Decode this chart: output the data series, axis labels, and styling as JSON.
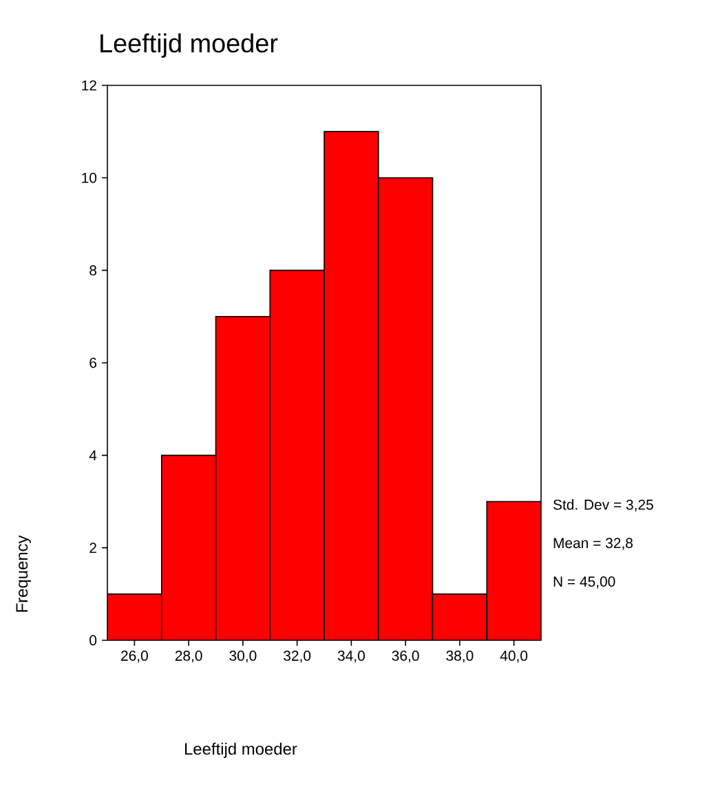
{
  "chart_data": {
    "type": "histogram",
    "title": "Leeftijd moeder",
    "xlabel": "Leeftijd moeder",
    "ylabel": "Frequency",
    "bins": [
      25,
      27,
      29,
      31,
      33,
      35,
      37,
      39,
      41
    ],
    "values": [
      1,
      4,
      7,
      8,
      11,
      10,
      1,
      3
    ],
    "color": "#ff0000",
    "xlim": [
      25,
      41
    ],
    "ylim": [
      0,
      12
    ],
    "xticks": [
      {
        "value": 26,
        "label": "26,0"
      },
      {
        "value": 28,
        "label": "28,0"
      },
      {
        "value": 30,
        "label": "30,0"
      },
      {
        "value": 32,
        "label": "32,0"
      },
      {
        "value": 34,
        "label": "34,0"
      },
      {
        "value": 36,
        "label": "36,0"
      },
      {
        "value": 38,
        "label": "38,0"
      },
      {
        "value": 40,
        "label": "40,0"
      }
    ],
    "yticks": [
      0,
      2,
      4,
      6,
      8,
      10,
      12
    ],
    "annotations": [
      "Std. Dev = 3,25",
      "Mean = 32,8",
      "N = 45,00"
    ]
  }
}
